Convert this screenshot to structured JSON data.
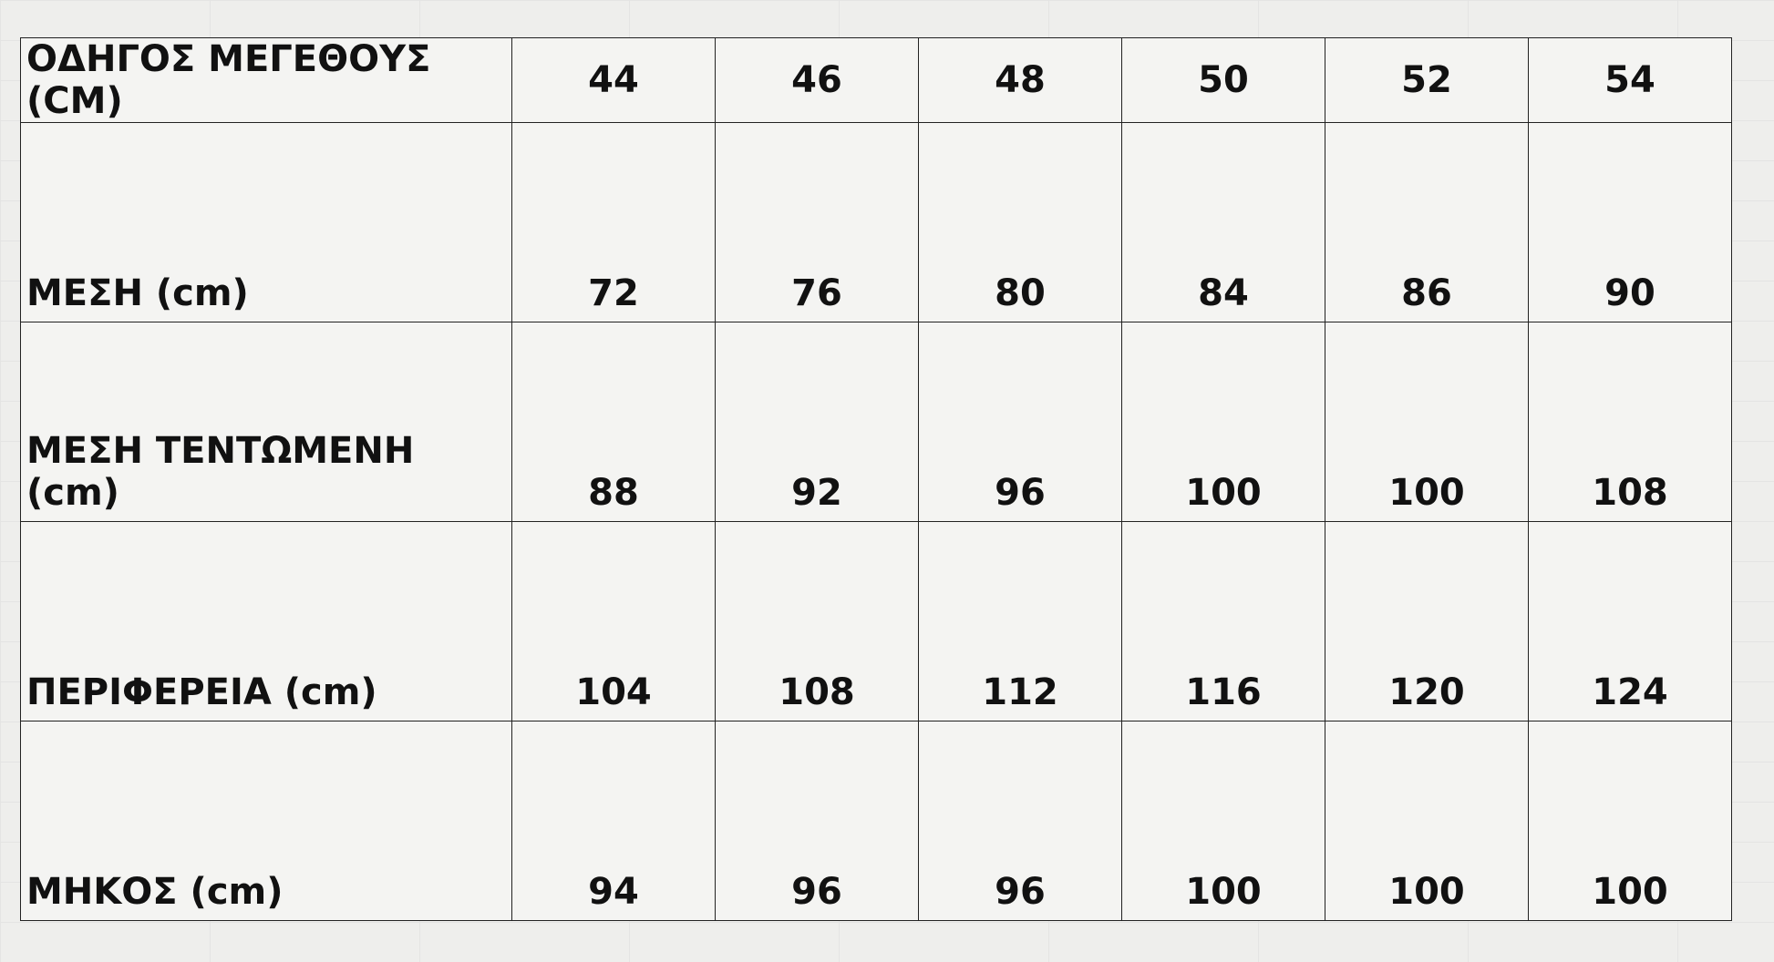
{
  "table": {
    "header": {
      "label": "ΟΔΗΓΟΣ ΜΕΓΕΘΟΥΣ  (CM)",
      "sizes": [
        "44",
        "46",
        "48",
        "50",
        "52",
        "54"
      ]
    },
    "rows": [
      {
        "label": "ΜΕΣΗ (cm)",
        "values": [
          "72",
          "76",
          "80",
          "84",
          "86",
          "90"
        ]
      },
      {
        "label": "ΜΕΣΗ ΤΕΝΤΩΜΕΝΗ (cm)",
        "values": [
          "88",
          "92",
          "96",
          "100",
          "100",
          "108"
        ]
      },
      {
        "label": "ΠΕΡΙΦΕΡΕΙΑ (cm)",
        "values": [
          "104",
          "108",
          "112",
          "116",
          "120",
          "124"
        ]
      },
      {
        "label": "ΜΗΚΟΣ (cm)",
        "values": [
          "94",
          "96",
          "96",
          "100",
          "100",
          "100"
        ]
      }
    ]
  }
}
